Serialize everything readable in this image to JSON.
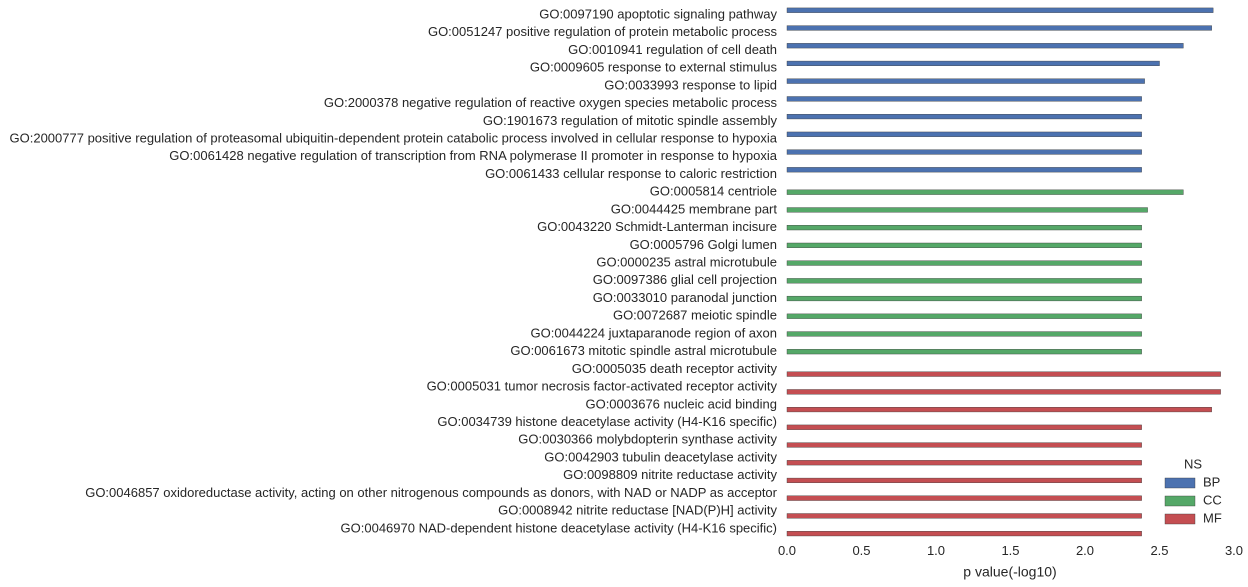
{
  "chart_data": {
    "type": "barh",
    "categories": [
      "GO:0097190 apoptotic signaling pathway",
      "GO:0051247 positive regulation of protein metabolic process",
      "GO:0010941 regulation of cell death",
      "GO:0009605 response to external stimulus",
      "GO:0033993 response to lipid",
      "GO:2000378 negative regulation of reactive oxygen species metabolic process",
      "GO:1901673 regulation of mitotic spindle assembly",
      "GO:2000777 positive regulation of proteasomal ubiquitin-dependent protein catabolic process involved in cellular response to hypoxia",
      "GO:0061428 negative regulation of transcription from RNA polymerase II promoter in response to hypoxia",
      "GO:0061433 cellular response to caloric restriction",
      "GO:0005814 centriole",
      "GO:0044425 membrane part",
      "GO:0043220 Schmidt-Lanterman incisure",
      "GO:0005796 Golgi lumen",
      "GO:0000235 astral microtubule",
      "GO:0097386 glial cell projection",
      "GO:0033010 paranodal junction",
      "GO:0072687 meiotic spindle",
      "GO:0044224 juxtaparanode region of axon",
      "GO:0061673 mitotic spindle astral microtubule",
      "GO:0005035 death receptor activity",
      "GO:0005031 tumor necrosis factor-activated receptor activity",
      "GO:0003676 nucleic acid binding",
      "GO:0034739 histone deacetylase activity (H4-K16 specific)",
      "GO:0030366 molybdopterin synthase activity",
      "GO:0042903 tubulin deacetylase activity",
      "GO:0098809 nitrite reductase activity",
      "GO:0046857 oxidoreductase activity, acting on other nitrogenous compounds as donors, with NAD or NADP as acceptor",
      "GO:0008942 nitrite reductase [NAD(P)H] activity",
      "GO:0046970 NAD-dependent histone deacetylase activity (H4-K16 specific)"
    ],
    "series": [
      {
        "name": "BP",
        "color": "#4c72b0",
        "values": [
          2.86,
          2.85,
          2.66,
          2.5,
          2.4,
          2.38,
          2.38,
          2.38,
          2.38,
          2.38,
          null,
          null,
          null,
          null,
          null,
          null,
          null,
          null,
          null,
          null,
          null,
          null,
          null,
          null,
          null,
          null,
          null,
          null,
          null,
          null
        ]
      },
      {
        "name": "CC",
        "color": "#55a868",
        "values": [
          null,
          null,
          null,
          null,
          null,
          null,
          null,
          null,
          null,
          null,
          2.66,
          2.42,
          2.38,
          2.38,
          2.38,
          2.38,
          2.38,
          2.38,
          2.38,
          2.38,
          null,
          null,
          null,
          null,
          null,
          null,
          null,
          null,
          null,
          null
        ]
      },
      {
        "name": "MF",
        "color": "#c44e52",
        "values": [
          null,
          null,
          null,
          null,
          null,
          null,
          null,
          null,
          null,
          null,
          null,
          null,
          null,
          null,
          null,
          null,
          null,
          null,
          null,
          null,
          2.91,
          2.91,
          2.85,
          2.38,
          2.38,
          2.38,
          2.38,
          2.38,
          2.38,
          2.38
        ]
      }
    ],
    "xlabel": "p value(-log10)",
    "xlim": [
      0,
      3
    ],
    "xticks": [
      {
        "value": 0,
        "label": "0.0"
      },
      {
        "value": 0.5,
        "label": "0.5"
      },
      {
        "value": 1,
        "label": "1.0"
      },
      {
        "value": 1.5,
        "label": "1.5"
      },
      {
        "value": 2,
        "label": "2.0"
      },
      {
        "value": 2.5,
        "label": "2.5"
      },
      {
        "value": 3,
        "label": "3.0"
      }
    ],
    "legend_title": "NS",
    "legend_position": "lower right",
    "grid": false
  }
}
